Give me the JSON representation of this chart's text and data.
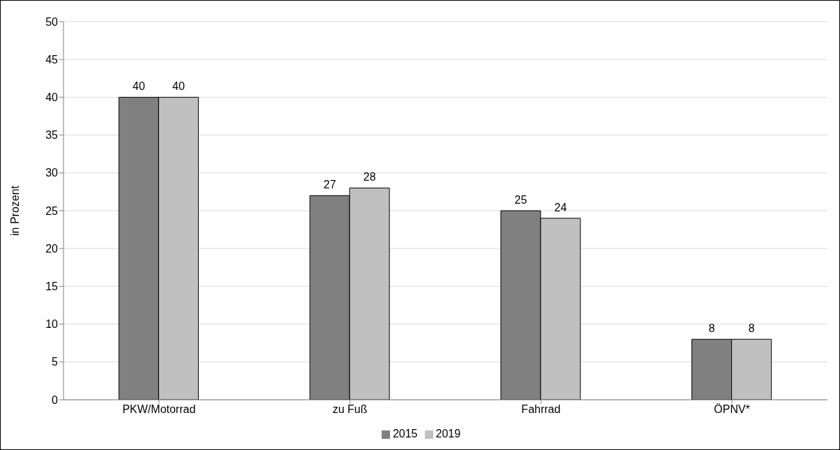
{
  "chart_data": {
    "type": "bar",
    "ylabel": "in Prozent",
    "categories": [
      "PKW/Motorrad",
      "zu Fuß",
      "Fahrrad",
      "ÖPNV*"
    ],
    "series": [
      {
        "name": "2015",
        "color": "#808080",
        "values": [
          40,
          27,
          25,
          8
        ]
      },
      {
        "name": "2019",
        "color": "#c0c0c0",
        "values": [
          40,
          28,
          24,
          8
        ]
      }
    ],
    "ylim": [
      0,
      50
    ],
    "yticks": [
      0,
      5,
      10,
      15,
      20,
      25,
      30,
      35,
      40,
      45,
      50
    ],
    "grid": "y",
    "legend": "bottom",
    "data_labels": true
  }
}
